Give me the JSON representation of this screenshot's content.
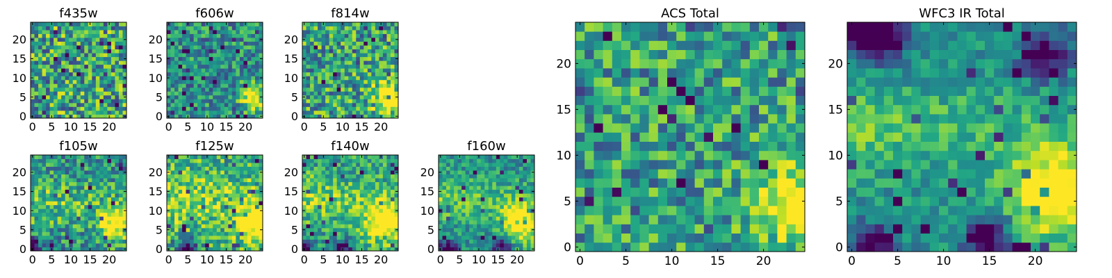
{
  "chart_data": [
    {
      "type": "heatmap",
      "title": "f435w",
      "size": "small",
      "grid_size": 25,
      "xlim": [
        0,
        24
      ],
      "ylim": [
        0,
        24
      ],
      "xticks": [
        0,
        5,
        10,
        15,
        20
      ],
      "yticks": [
        0,
        5,
        10,
        15,
        20
      ],
      "colormap": "viridis",
      "pattern": {
        "bright_spot": null,
        "bright_band": null,
        "dark_corners": [],
        "noise": 0.38,
        "base": 0.58
      }
    },
    {
      "type": "heatmap",
      "title": "f606w",
      "size": "small",
      "grid_size": 25,
      "xlim": [
        0,
        24
      ],
      "ylim": [
        0,
        24
      ],
      "xticks": [
        0,
        5,
        10,
        15,
        20
      ],
      "yticks": [
        0,
        5,
        10,
        15,
        20
      ],
      "colormap": "viridis",
      "pattern": {
        "bright_spot": [
          22,
          5,
          2.2
        ],
        "bright_band": null,
        "dark_corners": [],
        "noise": 0.28,
        "base": 0.5
      }
    },
    {
      "type": "heatmap",
      "title": "f814w",
      "size": "small",
      "grid_size": 25,
      "xlim": [
        0,
        24
      ],
      "ylim": [
        0,
        24
      ],
      "xticks": [
        0,
        5,
        10,
        15,
        20
      ],
      "yticks": [
        0,
        5,
        10,
        15,
        20
      ],
      "colormap": "viridis",
      "pattern": {
        "bright_spot": [
          22,
          5,
          2.8
        ],
        "bright_band": null,
        "dark_corners": [],
        "noise": 0.34,
        "base": 0.58
      }
    },
    {
      "type": "heatmap",
      "title": "f105w",
      "size": "small",
      "grid_size": 25,
      "xlim": [
        0,
        24
      ],
      "ylim": [
        0,
        24
      ],
      "xticks": [
        0,
        5,
        10,
        15,
        20
      ],
      "yticks": [
        0,
        5,
        10,
        15,
        20
      ],
      "colormap": "viridis",
      "pattern": {
        "bright_spot": [
          22,
          7,
          3
        ],
        "bright_band": [
          12,
          4
        ],
        "dark_corners": [
          [
            0,
            0
          ]
        ],
        "noise": 0.28,
        "base": 0.52
      }
    },
    {
      "type": "heatmap",
      "title": "f125w",
      "size": "small",
      "grid_size": 25,
      "xlim": [
        0,
        24
      ],
      "ylim": [
        0,
        24
      ],
      "xticks": [
        0,
        5,
        10,
        15,
        20
      ],
      "yticks": [
        0,
        5,
        10,
        15,
        20
      ],
      "colormap": "viridis",
      "pattern": {
        "bright_spot": [
          22,
          7,
          3
        ],
        "bright_band": [
          13,
          5
        ],
        "dark_corners": [
          [
            5,
            0
          ]
        ],
        "noise": 0.28,
        "base": 0.62
      }
    },
    {
      "type": "heatmap",
      "title": "f140w",
      "size": "small",
      "grid_size": 25,
      "xlim": [
        0,
        24
      ],
      "ylim": [
        0,
        24
      ],
      "xticks": [
        0,
        5,
        10,
        15,
        20
      ],
      "yticks": [
        0,
        5,
        10,
        15,
        20
      ],
      "colormap": "viridis",
      "pattern": {
        "bright_spot": [
          21,
          7,
          3.5
        ],
        "bright_band": [
          13,
          4
        ],
        "dark_corners": [
          [
            0,
            0
          ],
          [
            10,
            0
          ]
        ],
        "noise": 0.24,
        "base": 0.58
      }
    },
    {
      "type": "heatmap",
      "title": "f160w",
      "size": "small",
      "grid_size": 25,
      "xlim": [
        0,
        24
      ],
      "ylim": [
        0,
        24
      ],
      "xticks": [
        0,
        5,
        10,
        15,
        20
      ],
      "yticks": [
        0,
        5,
        10,
        15,
        20
      ],
      "colormap": "viridis",
      "pattern": {
        "bright_spot": [
          21,
          7,
          3.5
        ],
        "bright_band": [
          13,
          4
        ],
        "dark_corners": [
          [
            2,
            0
          ],
          [
            16,
            1
          ]
        ],
        "noise": 0.2,
        "base": 0.52
      }
    },
    {
      "type": "heatmap",
      "title": "ACS Total",
      "size": "large",
      "grid_size": 25,
      "xlim": [
        0,
        24
      ],
      "ylim": [
        0,
        24
      ],
      "xticks": [
        0,
        5,
        10,
        15,
        20
      ],
      "yticks": [
        0,
        5,
        10,
        15,
        20
      ],
      "colormap": "viridis",
      "pattern": {
        "bright_spot": [
          23,
          5,
          2.8
        ],
        "bright_band": null,
        "dark_corners": [],
        "noise": 0.3,
        "base": 0.56
      }
    },
    {
      "type": "heatmap",
      "title": "WFC3 IR Total",
      "size": "large",
      "grid_size": 25,
      "xlim": [
        0,
        24
      ],
      "ylim": [
        0,
        24
      ],
      "xticks": [
        0,
        5,
        10,
        15,
        20
      ],
      "yticks": [
        0,
        5,
        10,
        15,
        20
      ],
      "colormap": "viridis",
      "pattern": {
        "bright_spot": [
          22,
          6,
          3.5
        ],
        "bright_band": [
          13,
          3.5
        ],
        "dark_corners": [
          [
            2,
            0
          ],
          [
            1,
            23
          ],
          [
            4,
            23
          ],
          [
            21,
            21
          ],
          [
            15,
            1
          ]
        ],
        "noise": 0.16,
        "base": 0.5
      }
    }
  ]
}
